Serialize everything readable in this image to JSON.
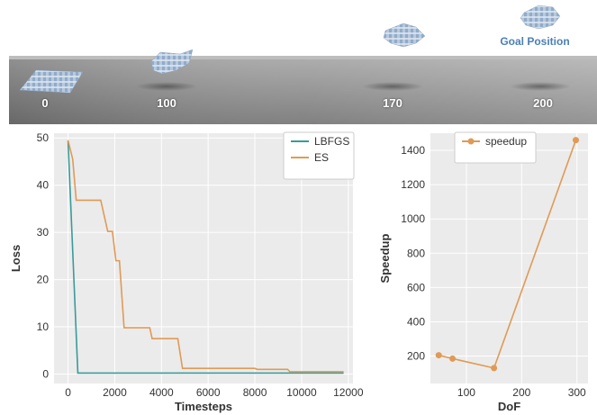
{
  "banner": {
    "frame_labels": [
      "0",
      "100",
      "170",
      "200"
    ],
    "goal_label": "Goal Position",
    "goal_label_color": "#4a7fb5"
  },
  "chart_data": [
    {
      "type": "line",
      "xlabel": "Timesteps",
      "ylabel": "Loss",
      "xlim": [
        -600,
        12200
      ],
      "ylim": [
        -2,
        51
      ],
      "xticks": [
        0,
        2000,
        4000,
        6000,
        8000,
        10000,
        12000
      ],
      "yticks": [
        0,
        10,
        20,
        30,
        40,
        50
      ],
      "grid": true,
      "legend_position": "top-right",
      "series": [
        {
          "name": "LBFGS",
          "color": "#3a9a9a",
          "points": [
            [
              0,
              49.5
            ],
            [
              420,
              0.2
            ],
            [
              11800,
              0.2
            ]
          ]
        },
        {
          "name": "ES",
          "color": "#e09a55",
          "points": [
            [
              0,
              49.5
            ],
            [
              200,
              45.5
            ],
            [
              350,
              36.8
            ],
            [
              1400,
              36.8
            ],
            [
              1700,
              30.2
            ],
            [
              1900,
              30.2
            ],
            [
              2050,
              24
            ],
            [
              2200,
              24
            ],
            [
              2400,
              9.8
            ],
            [
              3500,
              9.8
            ],
            [
              3600,
              7.5
            ],
            [
              4700,
              7.5
            ],
            [
              4900,
              1.2
            ],
            [
              8000,
              1.2
            ],
            [
              8100,
              1.0
            ],
            [
              9400,
              1.0
            ],
            [
              9500,
              0.5
            ],
            [
              11800,
              0.5
            ]
          ]
        }
      ]
    },
    {
      "type": "line",
      "xlabel": "DoF",
      "ylabel": "Speedup",
      "xlim": [
        35,
        320
      ],
      "ylim": [
        40,
        1500
      ],
      "xticks": [
        100,
        200,
        300
      ],
      "yticks": [
        200,
        400,
        600,
        800,
        1000,
        1200,
        1400
      ],
      "grid": true,
      "legend_position": "top-left",
      "series": [
        {
          "name": "speedup",
          "color": "#e09a55",
          "points": [
            [
              50,
              205
            ],
            [
              75,
              185
            ],
            [
              150,
              130
            ],
            [
              298,
              1460
            ]
          ]
        }
      ]
    }
  ]
}
